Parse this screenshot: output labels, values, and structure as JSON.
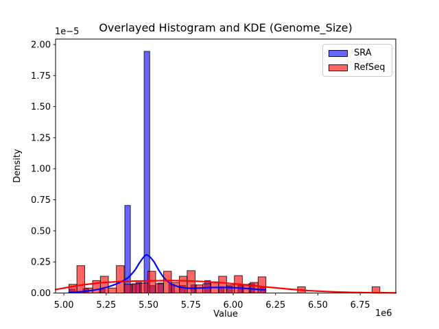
{
  "chart_data": {
    "type": "histogram+kde",
    "title": "Overlayed Histogram and KDE (Genome_Size)",
    "xlabel": "Value",
    "ylabel": "Density",
    "x_offset_text": "1e6",
    "y_offset_text": "1e−5",
    "x_unit_multiplier": "1e6",
    "y_unit_multiplier": "1e-5",
    "xlim": [
      4.951,
      6.96
    ],
    "ylim": [
      0,
      2.044
    ],
    "grid": false,
    "legend_position": "upper right",
    "xticks": [
      {
        "value": 5.0,
        "label": "5.00"
      },
      {
        "value": 5.25,
        "label": "5.25"
      },
      {
        "value": 5.5,
        "label": "5.50"
      },
      {
        "value": 5.75,
        "label": "5.75"
      },
      {
        "value": 6.0,
        "label": "6.00"
      },
      {
        "value": 6.25,
        "label": "6.25"
      },
      {
        "value": 6.5,
        "label": "6.50"
      },
      {
        "value": 6.75,
        "label": "6.75"
      }
    ],
    "yticks": [
      {
        "value": 0.0,
        "label": "0.00"
      },
      {
        "value": 0.25,
        "label": "0.25"
      },
      {
        "value": 0.5,
        "label": "0.50"
      },
      {
        "value": 0.75,
        "label": "0.75"
      },
      {
        "value": 1.0,
        "label": "1.00"
      },
      {
        "value": 1.25,
        "label": "1.25"
      },
      {
        "value": 1.5,
        "label": "1.50"
      },
      {
        "value": 1.75,
        "label": "1.75"
      },
      {
        "value": 2.0,
        "label": "2.00"
      }
    ],
    "legend": [
      {
        "label": "SRA",
        "color_hex": "#0000ff",
        "fill_rgba": "rgba(0,0,255,0.6)"
      },
      {
        "label": "RefSeq",
        "color_hex": "#ff0000",
        "fill_rgba": "rgba(255,0,0,0.6)"
      }
    ],
    "series": [
      {
        "name": "SRA",
        "type": "histogram",
        "fill_rgba": "rgba(0,0,255,0.6)",
        "edge_rgba": "rgba(0,0,0,0.8)",
        "bars": [
          [
            5.032,
            5.065,
            0.03
          ],
          [
            5.113,
            5.146,
            0.035
          ],
          [
            5.21,
            5.243,
            0.03
          ],
          [
            5.36,
            5.393,
            0.705
          ],
          [
            5.393,
            5.426,
            0.07
          ],
          [
            5.426,
            5.459,
            0.085
          ],
          [
            5.474,
            5.507,
            1.945
          ],
          [
            5.507,
            5.54,
            0.06
          ],
          [
            5.555,
            5.588,
            0.08
          ],
          [
            5.62,
            5.653,
            0.07
          ],
          [
            5.685,
            5.718,
            0.06
          ],
          [
            5.75,
            5.783,
            0.065
          ],
          [
            5.832,
            5.865,
            0.1
          ],
          [
            5.912,
            5.945,
            0.05
          ],
          [
            5.962,
            5.995,
            0.055
          ],
          [
            6.028,
            6.061,
            0.06
          ],
          [
            6.093,
            6.126,
            0.075
          ],
          [
            6.158,
            6.191,
            0.045
          ]
        ]
      },
      {
        "name": "RefSeq",
        "type": "histogram",
        "fill_rgba": "rgba(255,0,0,0.6)",
        "edge_rgba": "rgba(0,0,0,0.8)",
        "bars": [
          [
            5.03,
            5.077,
            0.07
          ],
          [
            5.077,
            5.123,
            0.22
          ],
          [
            5.123,
            5.17,
            0.04
          ],
          [
            5.17,
            5.216,
            0.1
          ],
          [
            5.216,
            5.263,
            0.135
          ],
          [
            5.263,
            5.31,
            0.04
          ],
          [
            5.31,
            5.356,
            0.22
          ],
          [
            5.356,
            5.403,
            0.07
          ],
          [
            5.403,
            5.449,
            0.075
          ],
          [
            5.449,
            5.496,
            0.08
          ],
          [
            5.496,
            5.542,
            0.175
          ],
          [
            5.542,
            5.589,
            0.075
          ],
          [
            5.589,
            5.635,
            0.175
          ],
          [
            5.635,
            5.682,
            0.085
          ],
          [
            5.682,
            5.728,
            0.135
          ],
          [
            5.728,
            5.775,
            0.18
          ],
          [
            5.775,
            5.821,
            0.065
          ],
          [
            5.821,
            5.868,
            0.075
          ],
          [
            5.868,
            5.914,
            0.09
          ],
          [
            5.914,
            5.961,
            0.135
          ],
          [
            5.961,
            6.007,
            0.065
          ],
          [
            6.007,
            6.054,
            0.14
          ],
          [
            6.054,
            6.1,
            0.07
          ],
          [
            6.1,
            6.147,
            0.085
          ],
          [
            6.147,
            6.193,
            0.13
          ],
          [
            6.38,
            6.426,
            0.05
          ],
          [
            6.82,
            6.866,
            0.05
          ]
        ]
      },
      {
        "name": "SRA KDE",
        "type": "kde-line",
        "color_hex": "#0000ff",
        "line_width": 2.2,
        "points": [
          [
            5.03,
            0.004
          ],
          [
            5.08,
            0.008
          ],
          [
            5.13,
            0.015
          ],
          [
            5.18,
            0.024
          ],
          [
            5.23,
            0.038
          ],
          [
            5.28,
            0.058
          ],
          [
            5.33,
            0.085
          ],
          [
            5.38,
            0.125
          ],
          [
            5.42,
            0.185
          ],
          [
            5.45,
            0.25
          ],
          [
            5.48,
            0.302
          ],
          [
            5.5,
            0.3
          ],
          [
            5.53,
            0.255
          ],
          [
            5.56,
            0.185
          ],
          [
            5.59,
            0.125
          ],
          [
            5.62,
            0.085
          ],
          [
            5.66,
            0.058
          ],
          [
            5.7,
            0.044
          ],
          [
            5.75,
            0.038
          ],
          [
            5.8,
            0.04
          ],
          [
            5.85,
            0.043
          ],
          [
            5.9,
            0.045
          ],
          [
            5.95,
            0.045
          ],
          [
            6.0,
            0.043
          ],
          [
            6.05,
            0.039
          ],
          [
            6.1,
            0.034
          ],
          [
            6.15,
            0.029
          ],
          [
            6.19,
            0.026
          ]
        ]
      },
      {
        "name": "RefSeq KDE",
        "type": "kde-line",
        "color_hex": "#ff0000",
        "line_width": 2.2,
        "points": [
          [
            4.951,
            0.028
          ],
          [
            5.0,
            0.04
          ],
          [
            5.05,
            0.052
          ],
          [
            5.1,
            0.063
          ],
          [
            5.15,
            0.072
          ],
          [
            5.2,
            0.08
          ],
          [
            5.25,
            0.086
          ],
          [
            5.3,
            0.09
          ],
          [
            5.35,
            0.093
          ],
          [
            5.4,
            0.095
          ],
          [
            5.45,
            0.097
          ],
          [
            5.5,
            0.098
          ],
          [
            5.55,
            0.099
          ],
          [
            5.6,
            0.1
          ],
          [
            5.65,
            0.1
          ],
          [
            5.7,
            0.099
          ],
          [
            5.75,
            0.097
          ],
          [
            5.8,
            0.094
          ],
          [
            5.85,
            0.09
          ],
          [
            5.9,
            0.086
          ],
          [
            5.95,
            0.081
          ],
          [
            6.0,
            0.075
          ],
          [
            6.05,
            0.069
          ],
          [
            6.1,
            0.062
          ],
          [
            6.15,
            0.055
          ],
          [
            6.2,
            0.048
          ],
          [
            6.25,
            0.042
          ],
          [
            6.3,
            0.035
          ],
          [
            6.35,
            0.029
          ],
          [
            6.4,
            0.024
          ],
          [
            6.45,
            0.019
          ],
          [
            6.5,
            0.015
          ],
          [
            6.55,
            0.012
          ],
          [
            6.6,
            0.009
          ],
          [
            6.65,
            0.007
          ],
          [
            6.7,
            0.005
          ],
          [
            6.75,
            0.004
          ],
          [
            6.8,
            0.003
          ],
          [
            6.85,
            0.002
          ],
          [
            6.9,
            0.002
          ],
          [
            6.96,
            0.001
          ]
        ]
      }
    ],
    "colors": {
      "sra_bar_composited": "#6666ff",
      "refseq_bar_composited": "#ff6666",
      "overlap_composited": "#c22966",
      "spine": "#000000",
      "text": "#000000",
      "legend_border": "#cccccc"
    }
  }
}
